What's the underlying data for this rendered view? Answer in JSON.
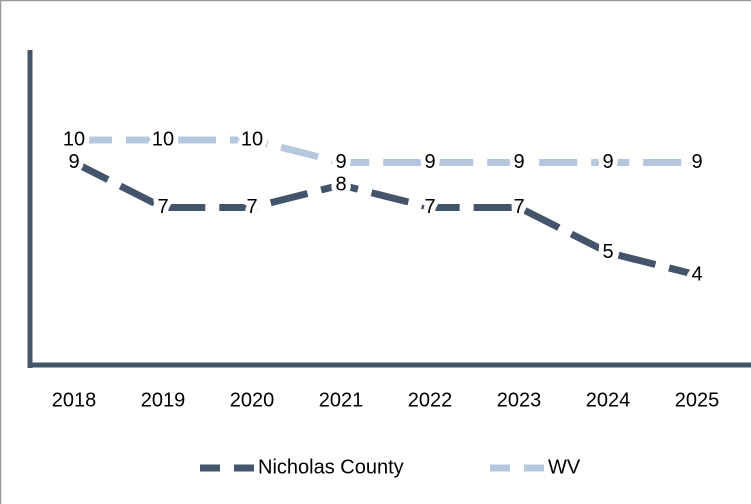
{
  "chart_data": {
    "type": "line",
    "categories": [
      "2018",
      "2019",
      "2020",
      "2021",
      "2022",
      "2023",
      "2024",
      "2025"
    ],
    "series": [
      {
        "name": "Nicholas County",
        "color": "#44546a",
        "values": [
          9,
          7,
          7,
          8,
          7,
          7,
          5,
          4
        ]
      },
      {
        "name": "WV",
        "color": "#b4c7dc",
        "values": [
          10,
          10,
          10,
          9,
          9,
          9,
          9,
          9
        ]
      }
    ],
    "ylim": [
      0,
      14
    ]
  }
}
